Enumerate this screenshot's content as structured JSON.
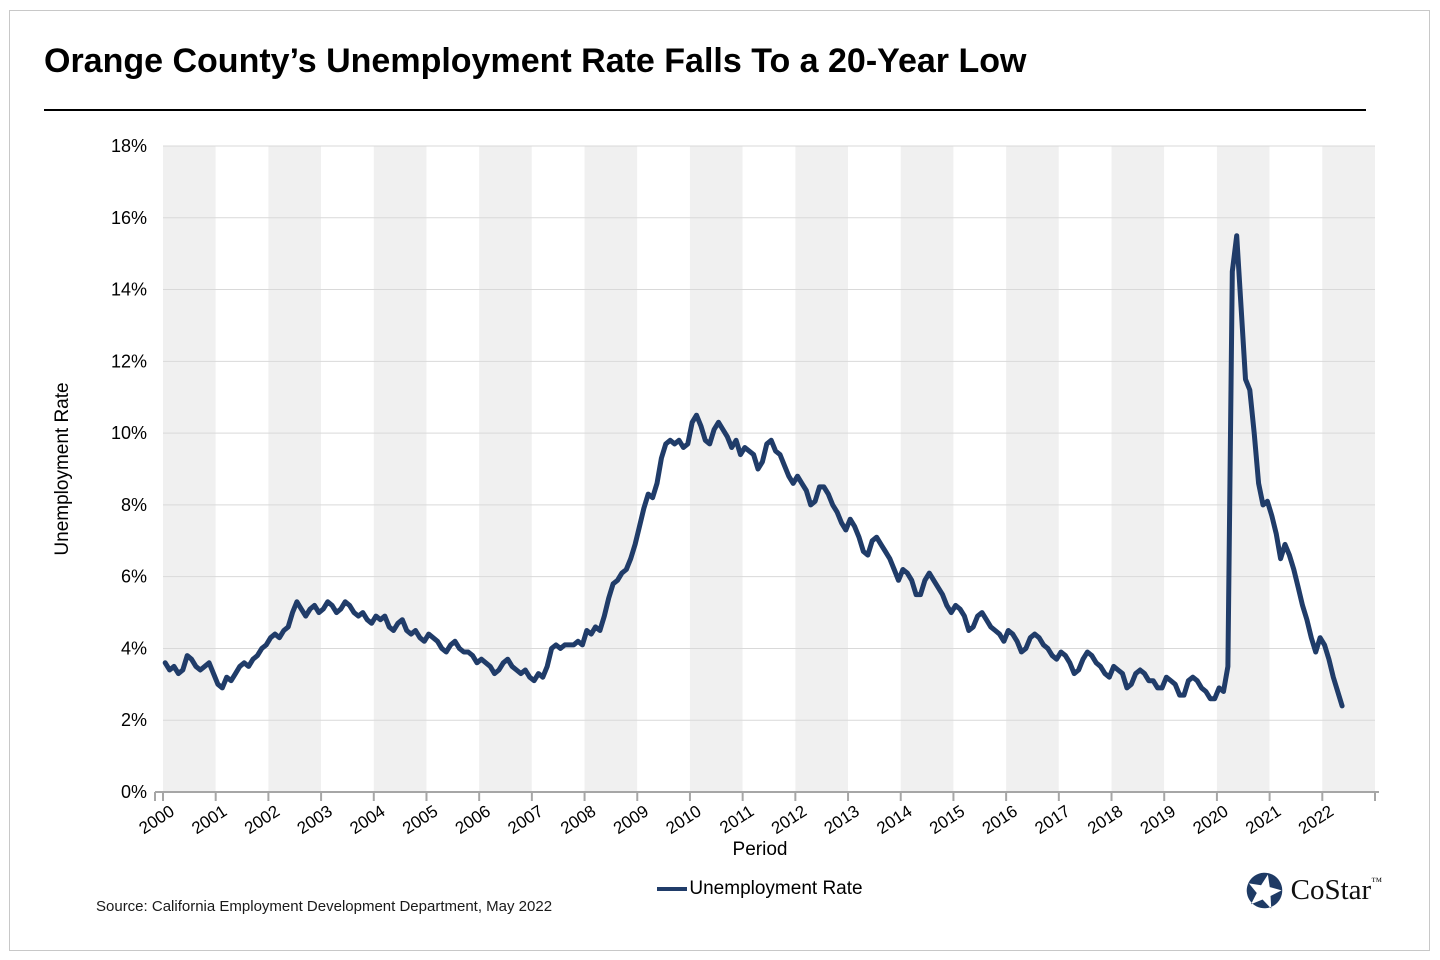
{
  "page": {
    "title": "Orange County’s Unemployment Rate Falls To a 20-Year Low",
    "source": "Source: California Employment Development Department, May 2022",
    "brand": {
      "name": "CoStar",
      "tm": "™"
    }
  },
  "chart_data": {
    "type": "line",
    "title": "Orange County’s Unemployment Rate Falls To a 20-Year Low",
    "xlabel": "Period",
    "ylabel": "Unemployment Rate",
    "legend_position": "bottom",
    "grid": true,
    "ylim": [
      0,
      18
    ],
    "ytick_step": 2,
    "ytick_suffix": "%",
    "x_years": [
      2000,
      2001,
      2002,
      2003,
      2004,
      2005,
      2006,
      2007,
      2008,
      2009,
      2010,
      2011,
      2012,
      2013,
      2014,
      2015,
      2016,
      2017,
      2018,
      2019,
      2020,
      2021,
      2022
    ],
    "band_colors": [
      "#f0f0f0",
      "#ffffff"
    ],
    "gridline_color": "#d9d9d9",
    "axis_color": "#a6a6a6",
    "line_color": "#203c69",
    "series": [
      {
        "name": "Unemployment Rate",
        "frequency": "monthly",
        "start": "2000-01",
        "end": "2022-05",
        "values": [
          3.6,
          3.4,
          3.5,
          3.3,
          3.4,
          3.8,
          3.7,
          3.5,
          3.4,
          3.5,
          3.6,
          3.3,
          3.0,
          2.9,
          3.2,
          3.1,
          3.3,
          3.5,
          3.6,
          3.5,
          3.7,
          3.8,
          4.0,
          4.1,
          4.3,
          4.4,
          4.3,
          4.5,
          4.6,
          5.0,
          5.3,
          5.1,
          4.9,
          5.1,
          5.2,
          5.0,
          5.1,
          5.3,
          5.2,
          5.0,
          5.1,
          5.3,
          5.2,
          5.0,
          4.9,
          5.0,
          4.8,
          4.7,
          4.9,
          4.8,
          4.9,
          4.6,
          4.5,
          4.7,
          4.8,
          4.5,
          4.4,
          4.5,
          4.3,
          4.2,
          4.4,
          4.3,
          4.2,
          4.0,
          3.9,
          4.1,
          4.2,
          4.0,
          3.9,
          3.9,
          3.8,
          3.6,
          3.7,
          3.6,
          3.5,
          3.3,
          3.4,
          3.6,
          3.7,
          3.5,
          3.4,
          3.3,
          3.4,
          3.2,
          3.1,
          3.3,
          3.2,
          3.5,
          4.0,
          4.1,
          4.0,
          4.1,
          4.1,
          4.1,
          4.2,
          4.1,
          4.5,
          4.4,
          4.6,
          4.5,
          4.9,
          5.4,
          5.8,
          5.9,
          6.1,
          6.2,
          6.5,
          6.9,
          7.4,
          7.9,
          8.3,
          8.2,
          8.6,
          9.3,
          9.7,
          9.8,
          9.7,
          9.8,
          9.6,
          9.7,
          10.3,
          10.5,
          10.2,
          9.8,
          9.7,
          10.1,
          10.3,
          10.1,
          9.9,
          9.6,
          9.8,
          9.4,
          9.6,
          9.5,
          9.4,
          9.0,
          9.2,
          9.7,
          9.8,
          9.5,
          9.4,
          9.1,
          8.8,
          8.6,
          8.8,
          8.6,
          8.4,
          8.0,
          8.1,
          8.5,
          8.5,
          8.3,
          8.0,
          7.8,
          7.5,
          7.3,
          7.6,
          7.4,
          7.1,
          6.7,
          6.6,
          7.0,
          7.1,
          6.9,
          6.7,
          6.5,
          6.2,
          5.9,
          6.2,
          6.1,
          5.9,
          5.5,
          5.5,
          5.9,
          6.1,
          5.9,
          5.7,
          5.5,
          5.2,
          5.0,
          5.2,
          5.1,
          4.9,
          4.5,
          4.6,
          4.9,
          5.0,
          4.8,
          4.6,
          4.5,
          4.4,
          4.2,
          4.5,
          4.4,
          4.2,
          3.9,
          4.0,
          4.3,
          4.4,
          4.3,
          4.1,
          4.0,
          3.8,
          3.7,
          3.9,
          3.8,
          3.6,
          3.3,
          3.4,
          3.7,
          3.9,
          3.8,
          3.6,
          3.5,
          3.3,
          3.2,
          3.5,
          3.4,
          3.3,
          2.9,
          3.0,
          3.3,
          3.4,
          3.3,
          3.1,
          3.1,
          2.9,
          2.9,
          3.2,
          3.1,
          3.0,
          2.7,
          2.7,
          3.1,
          3.2,
          3.1,
          2.9,
          2.8,
          2.6,
          2.6,
          2.9,
          2.8,
          3.5,
          14.5,
          15.5,
          13.5,
          11.5,
          11.2,
          10.0,
          8.6,
          8.0,
          8.1,
          7.7,
          7.2,
          6.5,
          6.9,
          6.6,
          6.2,
          5.7,
          5.2,
          4.8,
          4.3,
          3.9,
          4.3,
          4.1,
          3.7,
          3.2,
          2.8,
          2.4
        ]
      }
    ]
  }
}
